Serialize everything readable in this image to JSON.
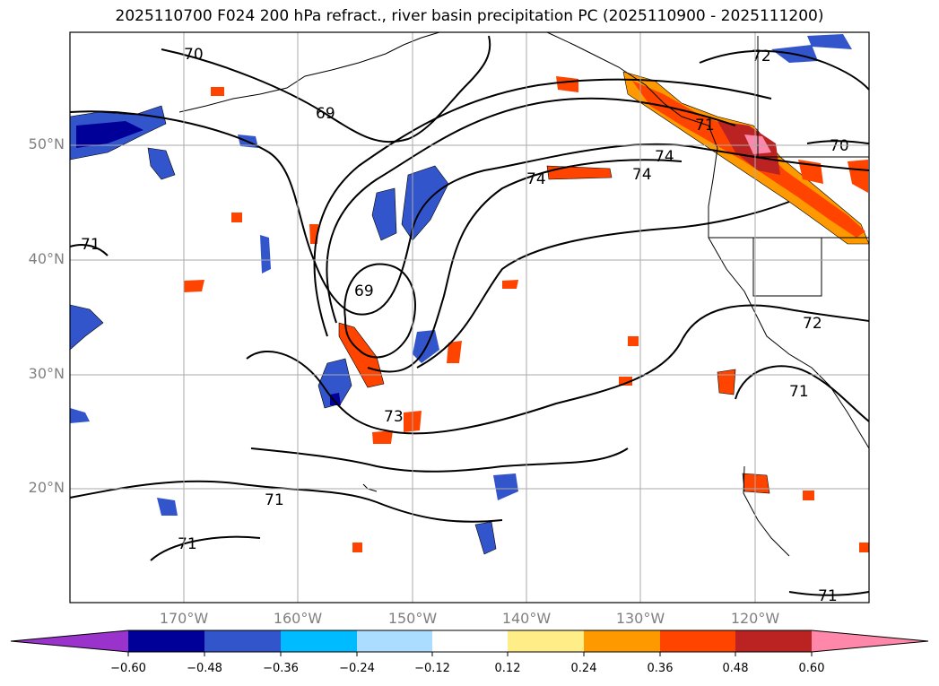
{
  "title": "2025110700 F024 200 hPa refract., river basin precipitation PC (2025110900 - 2025111200)",
  "map": {
    "latitude_labels": [
      "50°N",
      "40°N",
      "30°N",
      "20°N"
    ],
    "longitude_labels": [
      "170°W",
      "160°W",
      "150°W",
      "140°W",
      "130°W",
      "120°W"
    ],
    "contour_labels": [
      "70",
      "69",
      "69",
      "71",
      "74",
      "74",
      "74",
      "70",
      "71",
      "73",
      "72",
      "71",
      "71",
      "71",
      "71",
      "72"
    ]
  },
  "colorbar": {
    "tick_labels": [
      "−0.60",
      "−0.48",
      "−0.36",
      "−0.24",
      "−0.12",
      "0.12",
      "0.24",
      "0.36",
      "0.48",
      "0.60"
    ],
    "colors": [
      "#9933cc",
      "#000099",
      "#3355cc",
      "#00bbff",
      "#aaddff",
      "#ffffff",
      "#ffee88",
      "#ff9900",
      "#ff4400",
      "#bb2222",
      "#ff88aa"
    ]
  }
}
